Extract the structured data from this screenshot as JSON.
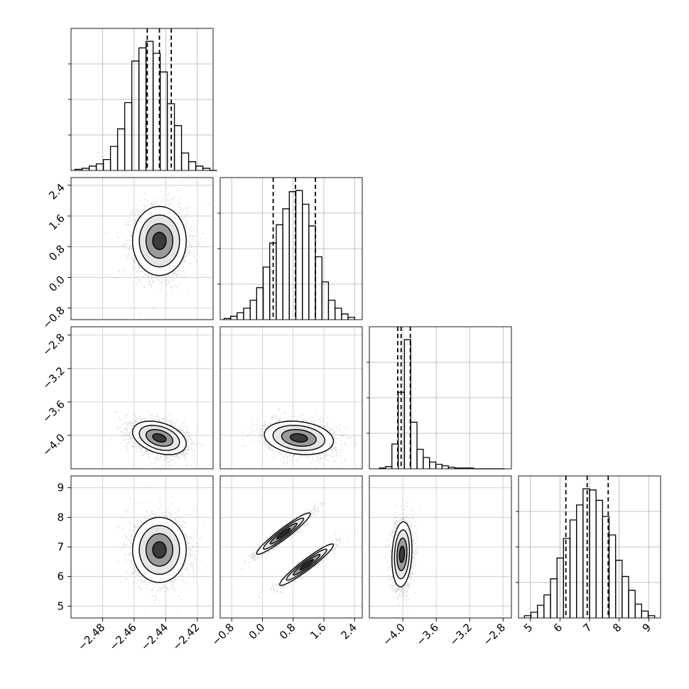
{
  "chart_data": {
    "type": "scatter",
    "figure_kind": "corner plot (pairwise posterior densities with marginal histograms)",
    "grid": true,
    "quantile_lines": "dashed",
    "params": [
      {
        "name": "",
        "range": [
          -2.5,
          -2.41
        ],
        "x_ticks": [
          -2.48,
          -2.46,
          -2.44,
          -2.42
        ],
        "x_tick_labels": [
          "−2.48",
          "−2.46",
          "−2.44",
          "−2.42"
        ],
        "hist_bin_edges_start": -2.4975,
        "hist_bin_width": 0.0045,
        "hist_counts": [
          1,
          2,
          4,
          6,
          10,
          22,
          38,
          62,
          100,
          112,
          118,
          107,
          90,
          61,
          41,
          16,
          8,
          4,
          2,
          0
        ],
        "quantiles": [
          -2.4517,
          -2.444,
          -2.4365
        ]
      },
      {
        "name": "",
        "range": [
          -1.1,
          2.6
        ],
        "x_ticks": [
          -0.8,
          0.0,
          0.8,
          1.6,
          2.4
        ],
        "x_tick_labels": [
          "−0.8",
          "0.0",
          "0.8",
          "1.6",
          "2.4"
        ],
        "y_ticks": [
          -0.8,
          0.0,
          0.8,
          1.6,
          2.4
        ],
        "y_tick_labels": [
          "−0.8",
          "0.0",
          "0.8",
          "1.6",
          "2.4"
        ],
        "hist_bin_edges_start": -1.0,
        "hist_bin_width": 0.17,
        "hist_counts": [
          1,
          3,
          6,
          10,
          17,
          28,
          46,
          67,
          83,
          97,
          112,
          113,
          101,
          82,
          55,
          33,
          17,
          10,
          5,
          2
        ],
        "quantiles": [
          0.28,
          0.86,
          1.38
        ]
      },
      {
        "name": "",
        "range": [
          -4.4,
          -2.7
        ],
        "x_ticks": [
          -4.0,
          -3.6,
          -3.2,
          -2.8
        ],
        "x_tick_labels": [
          "−4.0",
          "−3.6",
          "−3.2",
          "−2.8"
        ],
        "y_ticks": [
          -2.8,
          -3.2,
          -3.6,
          -4.0
        ],
        "y_tick_labels": [
          "−2.8",
          "−3.2",
          "−3.6",
          "−4.0"
        ],
        "hist_bin_edges_start": -4.28,
        "hist_bin_width": 0.075,
        "hist_counts": [
          1,
          3,
          33,
          102,
          172,
          62,
          26,
          15,
          9,
          6,
          4,
          2,
          1,
          1,
          1,
          0,
          0,
          0,
          0,
          0
        ],
        "quantiles": [
          -4.06,
          -4.02,
          -3.91
        ]
      },
      {
        "name": "",
        "range": [
          4.6,
          9.4
        ],
        "x_ticks": [
          5,
          6,
          7,
          8,
          9
        ],
        "x_tick_labels": [
          "5",
          "6",
          "7",
          "8",
          "9"
        ],
        "y_ticks": [
          5,
          6,
          7,
          8,
          9
        ],
        "y_tick_labels": [
          "5",
          "6",
          "7",
          "8",
          "9"
        ],
        "hist_bin_edges_start": 4.8,
        "hist_bin_width": 0.22,
        "hist_counts": [
          2,
          5,
          11,
          20,
          34,
          52,
          69,
          85,
          98,
          112,
          111,
          102,
          88,
          72,
          50,
          36,
          24,
          12,
          6,
          2
        ],
        "quantiles": [
          6.2,
          6.92,
          7.63
        ]
      }
    ],
    "pairs": [
      {
        "x_param": 0,
        "y_param": 1,
        "center": [
          -2.444,
          0.95
        ],
        "std": [
          0.0085,
          0.45
        ],
        "corr": 0.0
      },
      {
        "x_param": 0,
        "y_param": 2,
        "center": [
          -2.444,
          -4.03
        ],
        "std": [
          0.0085,
          0.1
        ],
        "corr": -0.35
      },
      {
        "x_param": 1,
        "y_param": 2,
        "center": [
          0.95,
          -4.03
        ],
        "std": [
          0.45,
          0.1
        ],
        "corr": -0.2
      },
      {
        "x_param": 0,
        "y_param": 3,
        "center": [
          -2.444,
          6.9
        ],
        "std": [
          0.0085,
          0.55
        ],
        "corr": 0.0
      },
      {
        "x_param": 1,
        "y_param": 3,
        "modes": [
          {
            "center": [
              0.55,
              7.45
            ],
            "std": [
              0.35,
              0.35
            ],
            "corr": 0.95
          },
          {
            "center": [
              1.15,
              6.4
            ],
            "std": [
              0.35,
              0.35
            ],
            "corr": 0.95
          }
        ]
      },
      {
        "x_param": 2,
        "y_param": 3,
        "center": [
          -4.01,
          6.75
        ],
        "std": [
          0.06,
          0.55
        ],
        "corr": 0.15
      }
    ]
  }
}
